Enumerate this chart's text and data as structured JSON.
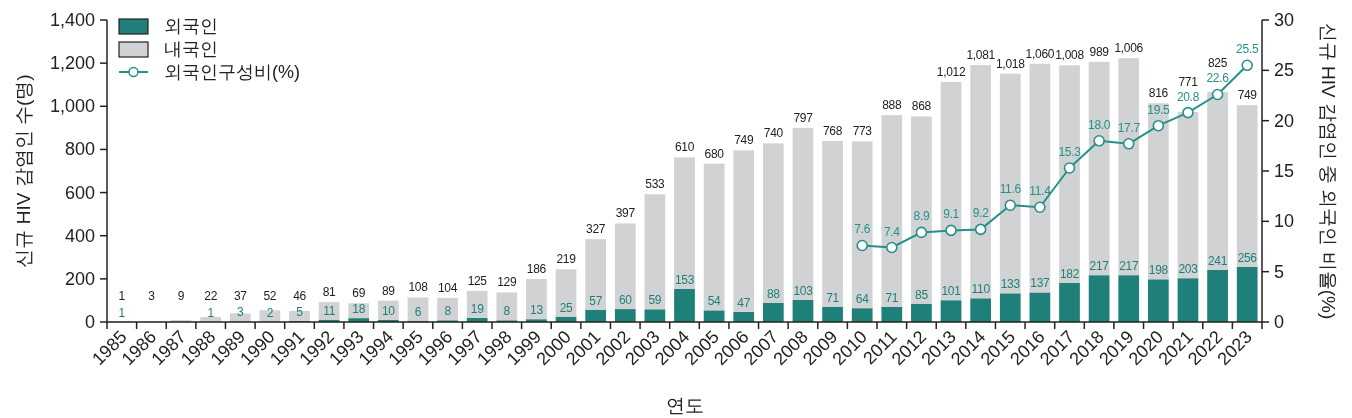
{
  "chart_data": {
    "type": "bar",
    "stacked": true,
    "xlabel": "연도",
    "ylabel": "신규 HIV 감염인 수(명)",
    "y2label": "신규 HIV 감염인 중 외국인 비율(%)",
    "legend": "top left",
    "grid": false,
    "marker": "circle",
    "line_style": "solid",
    "categories": [
      "1985",
      "1986",
      "1987",
      "1988",
      "1989",
      "1990",
      "1991",
      "1992",
      "1993",
      "1994",
      "1995",
      "1996",
      "1997",
      "1998",
      "1999",
      "2000",
      "2001",
      "2002",
      "2003",
      "2004",
      "2005",
      "2006",
      "2007",
      "2008",
      "2009",
      "2010",
      "2011",
      "2012",
      "2013",
      "2014",
      "2015",
      "2016",
      "2017",
      "2018",
      "2019",
      "2020",
      "2021",
      "2022",
      "2023"
    ],
    "ylim": [
      0,
      1400
    ],
    "yticks": [
      0,
      200,
      400,
      600,
      800,
      {
        "value": 1000,
        "label": "1,000"
      },
      {
        "value": 1200,
        "label": "1,200"
      },
      {
        "value": 1400,
        "label": "1,400"
      }
    ],
    "y2lim": [
      0,
      30
    ],
    "y2ticks": [
      0,
      5,
      10,
      15,
      20,
      25,
      30
    ],
    "series": [
      {
        "name": "외국인",
        "type": "bar",
        "color": "#1f8079",
        "values": [
          1,
          null,
          null,
          1,
          3,
          2,
          5,
          11,
          18,
          10,
          6,
          8,
          19,
          8,
          13,
          25,
          57,
          60,
          59,
          153,
          54,
          47,
          88,
          103,
          71,
          64,
          71,
          85,
          101,
          110,
          133,
          137,
          182,
          217,
          217,
          198,
          203,
          241,
          256
        ],
        "value_labels": [
          "1",
          null,
          null,
          "1",
          "3",
          "2",
          "5",
          "11",
          "18",
          "10",
          "6",
          "8",
          "19",
          "8",
          "13",
          "25",
          "57",
          "60",
          "59",
          "153",
          "54",
          "47",
          "88",
          "103",
          "71",
          "64",
          "71",
          "85",
          "101",
          "110",
          "133",
          "137",
          "182",
          "217",
          "217",
          "198",
          "203",
          "241",
          "256"
        ]
      },
      {
        "name": "내국인",
        "type": "bar",
        "color": "#d1d2d4",
        "values": [
          1,
          3,
          9,
          22,
          37,
          52,
          46,
          81,
          69,
          89,
          108,
          104,
          125,
          129,
          186,
          219,
          327,
          397,
          533,
          610,
          680,
          749,
          740,
          797,
          768,
          773,
          888,
          868,
          1012,
          1081,
          1018,
          1060,
          1008,
          989,
          1006,
          816,
          771,
          825,
          749
        ],
        "value_labels": [
          "1",
          "3",
          "9",
          "22",
          "37",
          "52",
          "46",
          "81",
          "69",
          "89",
          "108",
          "104",
          "125",
          "129",
          "186",
          "219",
          "327",
          "397",
          "533",
          "610",
          "680",
          "749",
          "740",
          "797",
          "768",
          "773",
          "888",
          "868",
          "1,012",
          "1,081",
          "1,018",
          "1,060",
          "1,008",
          "989",
          "1,006",
          "816",
          "771",
          "825",
          "749"
        ]
      },
      {
        "name": "외국인구성비(%)",
        "type": "line",
        "axis": "y2",
        "color": "#24918a",
        "values": [
          null,
          null,
          null,
          null,
          null,
          null,
          null,
          null,
          null,
          null,
          null,
          null,
          null,
          null,
          null,
          null,
          null,
          null,
          null,
          null,
          null,
          null,
          null,
          null,
          null,
          7.6,
          7.4,
          8.9,
          9.1,
          9.2,
          11.6,
          11.4,
          15.3,
          18.0,
          17.7,
          19.5,
          20.8,
          22.6,
          25.5
        ],
        "value_labels": [
          null,
          null,
          null,
          null,
          null,
          null,
          null,
          null,
          null,
          null,
          null,
          null,
          null,
          null,
          null,
          null,
          null,
          null,
          null,
          null,
          null,
          null,
          null,
          null,
          null,
          "7.6",
          "7.4",
          "8.9",
          "9.1",
          "9.2",
          "11.6",
          "11.4",
          "15.3",
          "18.0",
          "17.7",
          "19.5",
          "20.8",
          "22.6",
          "25.5"
        ]
      }
    ]
  }
}
